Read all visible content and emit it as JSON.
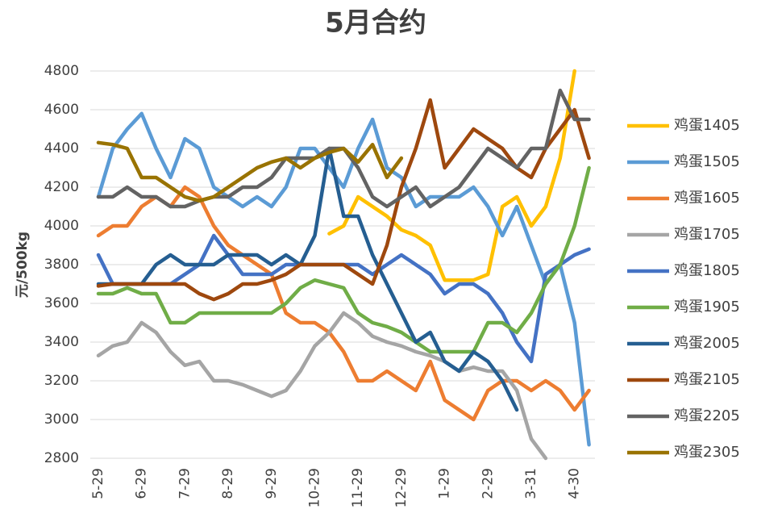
{
  "chart_data": {
    "type": "line",
    "title": "5月合约",
    "y_label": "元/500kg",
    "categories": [
      "5-29",
      null,
      null,
      "6-29",
      null,
      null,
      "7-29",
      null,
      null,
      "8-29",
      null,
      null,
      "9-29",
      null,
      null,
      "10-29",
      null,
      null,
      "11-29",
      null,
      null,
      "12-29",
      null,
      null,
      "1-29",
      null,
      null,
      "2-29",
      null,
      null,
      "3-31",
      null,
      null,
      "4-30",
      null
    ],
    "ylim": [
      2800,
      4800
    ],
    "yticks": [
      2800,
      3000,
      3200,
      3400,
      3600,
      3800,
      4000,
      4200,
      4400,
      4600,
      4800
    ],
    "grid": true,
    "legend": "right",
    "series": [
      {
        "name": "鸡蛋1405",
        "color": "#ffc000",
        "values": [
          null,
          null,
          null,
          null,
          null,
          null,
          null,
          null,
          null,
          null,
          null,
          null,
          null,
          null,
          null,
          null,
          3960,
          4000,
          4150,
          4100,
          4050,
          3980,
          3950,
          3900,
          3720,
          3720,
          3720,
          3750,
          4100,
          4150,
          4000,
          4100,
          4350,
          4800,
          null
        ]
      },
      {
        "name": "鸡蛋1505",
        "color": "#5b9bd5",
        "values": [
          4150,
          4400,
          4500,
          4580,
          4400,
          4250,
          4450,
          4400,
          4200,
          4150,
          4100,
          4150,
          4100,
          4200,
          4400,
          4400,
          4300,
          4200,
          4400,
          4550,
          4300,
          4250,
          4100,
          4150,
          4150,
          4150,
          4200,
          4100,
          3950,
          4100,
          3900,
          3700,
          3800,
          3500,
          2870
        ]
      },
      {
        "name": "鸡蛋1605",
        "color": "#ed7d31",
        "values": [
          3950,
          4000,
          4000,
          4100,
          4150,
          4100,
          4200,
          4150,
          4000,
          3900,
          3850,
          3800,
          3750,
          3550,
          3500,
          3500,
          3450,
          3350,
          3200,
          3200,
          3250,
          3200,
          3150,
          3300,
          3100,
          3050,
          3000,
          3150,
          3200,
          3200,
          3150,
          3200,
          3150,
          3050,
          3150
        ]
      },
      {
        "name": "鸡蛋1705",
        "color": "#a5a5a5",
        "values": [
          3330,
          3380,
          3400,
          3500,
          3450,
          3350,
          3280,
          3300,
          3200,
          3200,
          3180,
          3150,
          3120,
          3150,
          3250,
          3380,
          3450,
          3550,
          3500,
          3430,
          3400,
          3380,
          3350,
          3330,
          3300,
          3250,
          3270,
          3250,
          3250,
          3150,
          2900,
          2800,
          null,
          null,
          null
        ]
      },
      {
        "name": "鸡蛋1805",
        "color": "#4472c4",
        "values": [
          3850,
          3700,
          3700,
          3700,
          3700,
          3700,
          3750,
          3800,
          3950,
          3850,
          3750,
          3750,
          3750,
          3800,
          3800,
          3800,
          3800,
          3800,
          3800,
          3750,
          3800,
          3850,
          3800,
          3750,
          3650,
          3700,
          3700,
          3650,
          3550,
          3400,
          3300,
          3750,
          3800,
          3850,
          3880
        ]
      },
      {
        "name": "鸡蛋1905",
        "color": "#70ad47",
        "values": [
          3650,
          3650,
          3680,
          3650,
          3650,
          3500,
          3500,
          3550,
          3550,
          3550,
          3550,
          3550,
          3550,
          3600,
          3680,
          3720,
          3700,
          3680,
          3550,
          3500,
          3480,
          3450,
          3400,
          3350,
          3350,
          3350,
          3350,
          3500,
          3500,
          3450,
          3550,
          3700,
          3800,
          4000,
          4300
        ]
      },
      {
        "name": "鸡蛋2005",
        "color": "#255e91",
        "values": [
          3700,
          3700,
          3700,
          3700,
          3800,
          3850,
          3800,
          3800,
          3800,
          3850,
          3850,
          3850,
          3800,
          3850,
          3800,
          3950,
          4400,
          4050,
          4050,
          3850,
          3700,
          3550,
          3400,
          3450,
          3300,
          3250,
          3350,
          3300,
          3200,
          3050,
          null,
          null,
          null,
          null,
          null
        ]
      },
      {
        "name": "鸡蛋2105",
        "color": "#9e480e",
        "values": [
          3690,
          3700,
          3700,
          3700,
          3700,
          3700,
          3700,
          3650,
          3620,
          3650,
          3700,
          3700,
          3720,
          3750,
          3800,
          3800,
          3800,
          3800,
          3750,
          3700,
          3900,
          4200,
          4400,
          4650,
          4300,
          4400,
          4500,
          4450,
          4400,
          4300,
          4250,
          4400,
          4500,
          4600,
          4350
        ]
      },
      {
        "name": "鸡蛋2205",
        "color": "#636363",
        "values": [
          4150,
          4150,
          4200,
          4150,
          4150,
          4100,
          4100,
          4130,
          4150,
          4150,
          4200,
          4200,
          4250,
          4350,
          4350,
          4350,
          4400,
          4400,
          4300,
          4150,
          4100,
          4150,
          4200,
          4100,
          4150,
          4200,
          4300,
          4400,
          4350,
          4300,
          4400,
          4400,
          4700,
          4550,
          4550
        ]
      },
      {
        "name": "鸡蛋2305",
        "color": "#997300",
        "values": [
          4430,
          4420,
          4400,
          4250,
          4250,
          4200,
          4150,
          4130,
          4150,
          4200,
          4250,
          4300,
          4330,
          4350,
          4300,
          4350,
          4380,
          4400,
          4330,
          4420,
          4250,
          4350,
          null,
          null,
          null,
          null,
          null,
          null,
          null,
          null,
          null,
          null,
          null,
          null,
          null
        ]
      }
    ]
  }
}
